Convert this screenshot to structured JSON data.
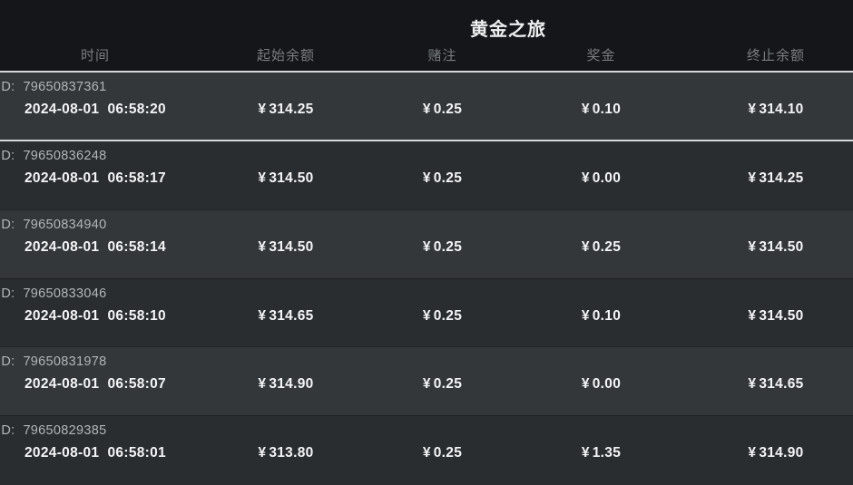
{
  "header": {
    "title": "黄金之旅"
  },
  "columns": [
    {
      "label": "时间"
    },
    {
      "label": "起始余额"
    },
    {
      "label": "赌注"
    },
    {
      "label": "奖金"
    },
    {
      "label": "终止余额"
    }
  ],
  "id_label": "ID:",
  "currency": "¥",
  "rows": [
    {
      "id": "79650837361",
      "time": "2024-08-01  06:58:20",
      "start": "314.25",
      "bet": "0.25",
      "prize": "0.10",
      "end": "314.10"
    },
    {
      "id": "79650836248",
      "time": "2024-08-01  06:58:17",
      "start": "314.50",
      "bet": "0.25",
      "prize": "0.00",
      "end": "314.25"
    },
    {
      "id": "79650834940",
      "time": "2024-08-01  06:58:14",
      "start": "314.50",
      "bet": "0.25",
      "prize": "0.25",
      "end": "314.50"
    },
    {
      "id": "79650833046",
      "time": "2024-08-01  06:58:10",
      "start": "314.65",
      "bet": "0.25",
      "prize": "0.10",
      "end": "314.50"
    },
    {
      "id": "79650831978",
      "time": "2024-08-01  06:58:07",
      "start": "314.90",
      "bet": "0.25",
      "prize": "0.00",
      "end": "314.65"
    },
    {
      "id": "79650829385",
      "time": "2024-08-01  06:58:01",
      "start": "313.80",
      "bet": "0.25",
      "prize": "1.35",
      "end": "314.90"
    }
  ],
  "colors": {
    "header_bg": "#141619",
    "row_light": "#33373a",
    "row_dark": "#2a2d30",
    "separator_highlight": "#d5d7d8",
    "text_primary": "#f3f4f5",
    "text_id": "#b3b6b9",
    "text_column_header": "#7a7d81"
  }
}
